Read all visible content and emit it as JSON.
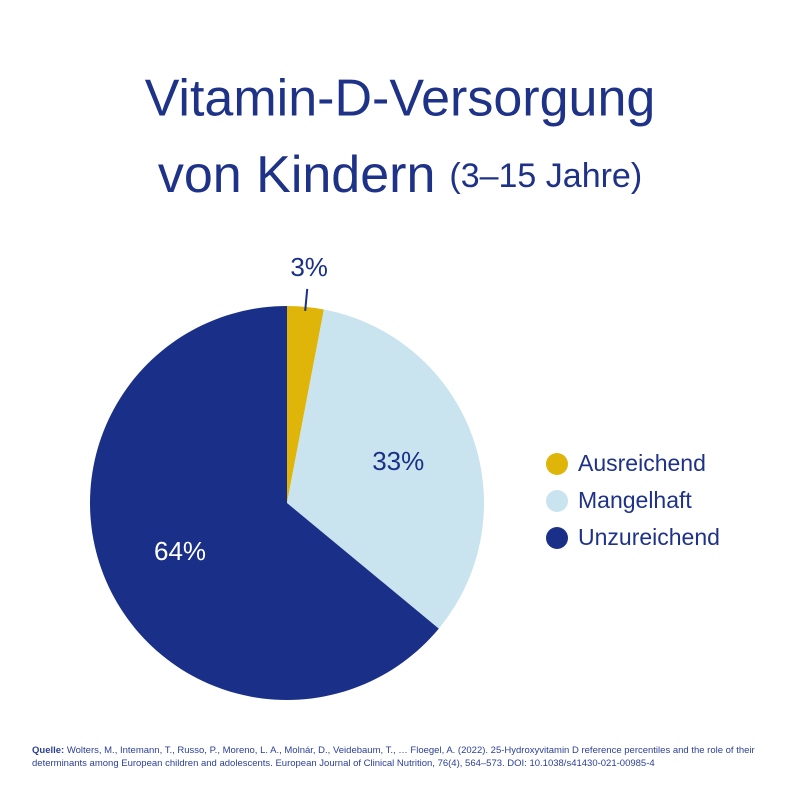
{
  "chart_data": {
    "type": "pie",
    "title": [
      "Vitamin-D-Versorgung",
      "von Kindern"
    ],
    "subtitle": "(3–15 Jahre)",
    "categories": [
      "Ausreichend",
      "Mangelhaft",
      "Unzureichend"
    ],
    "values": [
      3,
      33,
      64
    ],
    "value_labels": [
      "3%",
      "33%",
      "64%"
    ],
    "colors": [
      "#e0b50a",
      "#c9e4ee",
      "#1a3088"
    ],
    "legend": "right",
    "source_label": "Quelle:",
    "source": "Wolters, M., Intemann, T., Russo, P., Moreno, L. A., Molnár, D., Veidebaum, T., … Floegel, A. (2022). 25-Hydroxyvitamin D reference percentiles and the role of their determinants among European children and adolescents. European Journal of Clinical Nutrition, 76(4), 564–573. DOI: 10.1038/s41430-021-00985-4"
  }
}
